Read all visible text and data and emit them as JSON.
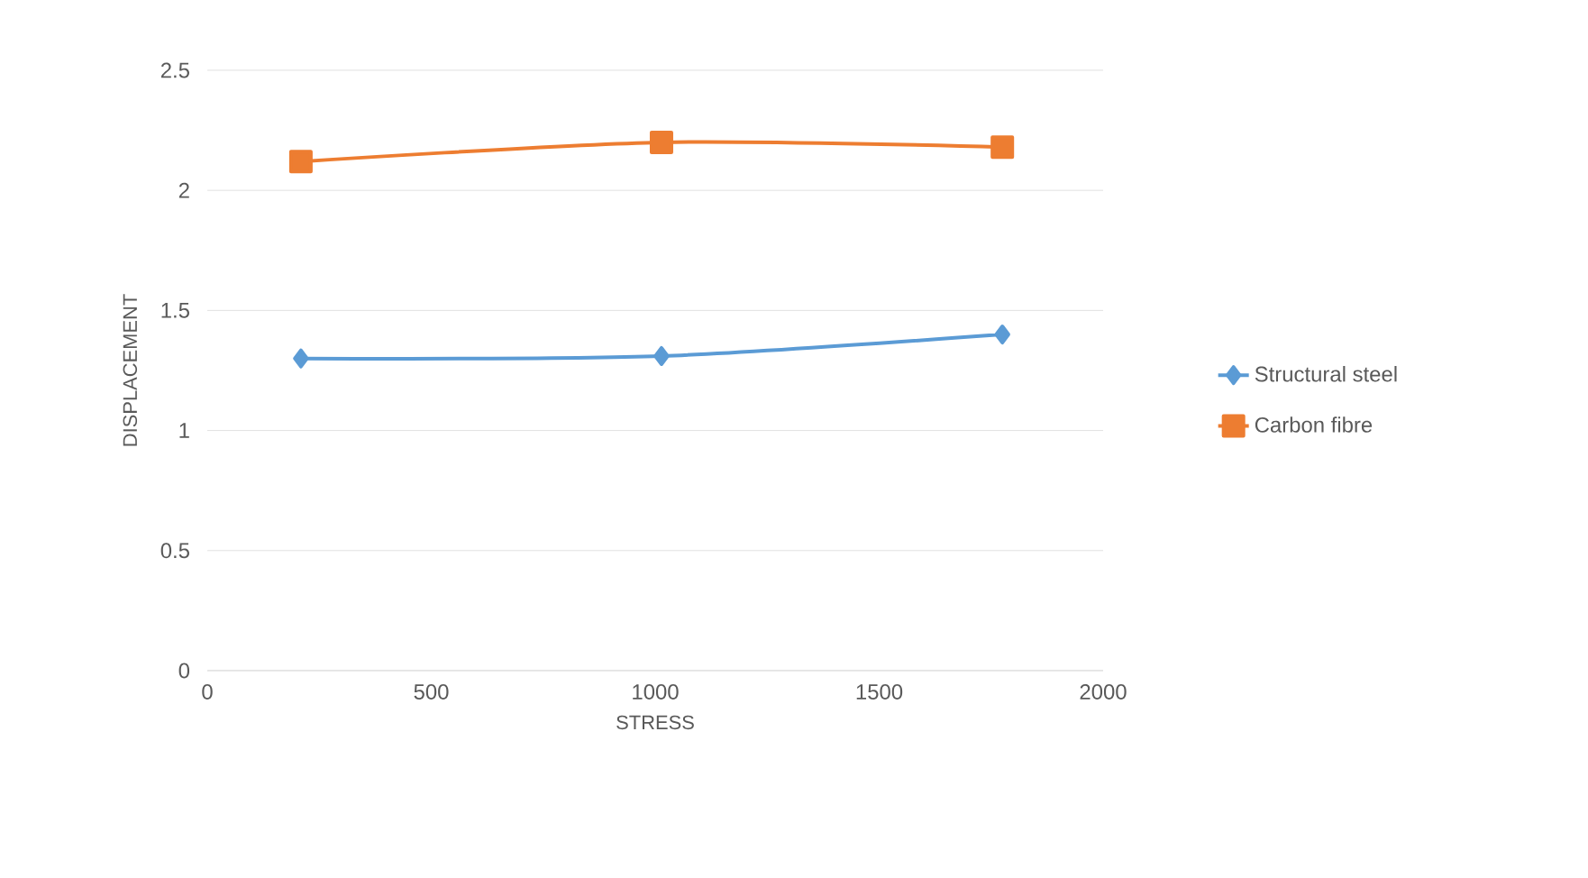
{
  "chart_data": {
    "type": "line",
    "xlabel": "STRESS",
    "ylabel": "DISPLACEMENT",
    "series": [
      {
        "name": "Structural steel",
        "color": "#5b9bd5",
        "marker": "diamond",
        "x": [
          209,
          1014,
          1775
        ],
        "values": [
          1.3,
          1.31,
          1.4
        ]
      },
      {
        "name": "Carbon fibre",
        "color": "#ed7d31",
        "marker": "square",
        "x": [
          209,
          1014,
          1775
        ],
        "values": [
          2.12,
          2.2,
          2.18
        ]
      }
    ],
    "xlim": [
      0,
      2000
    ],
    "xticks": [
      0,
      500,
      1000,
      1500,
      2000
    ],
    "ylim": [
      0,
      2.5
    ],
    "yticks": [
      0,
      0.5,
      1,
      1.5,
      2,
      2.5
    ],
    "grid": "y",
    "legend": "right"
  }
}
